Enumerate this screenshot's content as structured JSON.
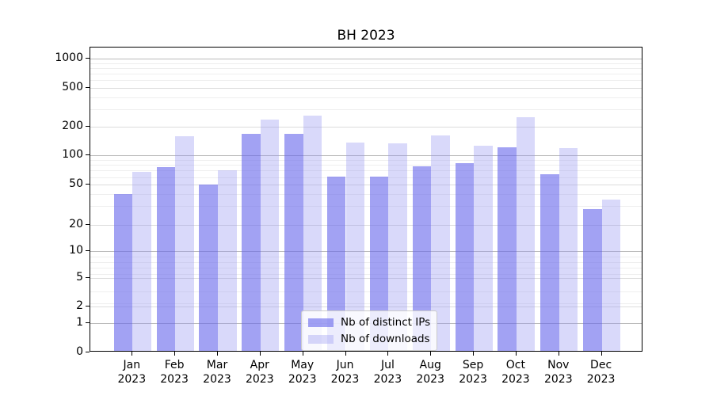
{
  "chart_data": {
    "type": "bar",
    "title": "BH 2023",
    "xlabel": "",
    "ylabel": "",
    "yscale": "symlog",
    "grid": true,
    "legend_position": "lower center",
    "ylim": [
      0,
      1300
    ],
    "yticks": [
      0,
      1,
      2,
      5,
      10,
      20,
      50,
      100,
      200,
      500,
      1000
    ],
    "categories": [
      {
        "month": "Jan",
        "year": "2023"
      },
      {
        "month": "Feb",
        "year": "2023"
      },
      {
        "month": "Mar",
        "year": "2023"
      },
      {
        "month": "Apr",
        "year": "2023"
      },
      {
        "month": "May",
        "year": "2023"
      },
      {
        "month": "Jun",
        "year": "2023"
      },
      {
        "month": "Jul",
        "year": "2023"
      },
      {
        "month": "Aug",
        "year": "2023"
      },
      {
        "month": "Sep",
        "year": "2023"
      },
      {
        "month": "Oct",
        "year": "2023"
      },
      {
        "month": "Nov",
        "year": "2023"
      },
      {
        "month": "Dec",
        "year": "2023"
      }
    ],
    "series": [
      {
        "name": "Nb of distinct IPs",
        "color": "rgba(105,105,235,0.62)",
        "values": [
          39,
          73,
          48,
          160,
          160,
          58,
          58,
          75,
          80,
          118,
          62,
          27
        ]
      },
      {
        "name": "Nb of downloads",
        "color": "rgba(150,150,240,0.36)",
        "values": [
          66,
          152,
          68,
          226,
          248,
          131,
          129,
          155,
          122,
          238,
          114,
          34
        ]
      }
    ]
  }
}
